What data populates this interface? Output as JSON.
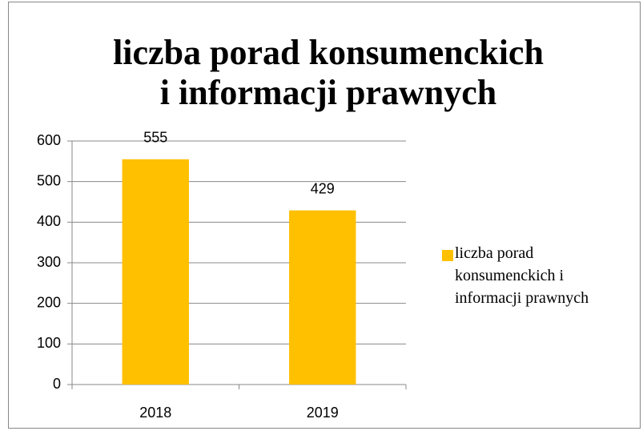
{
  "chart_data": {
    "type": "bar",
    "title": [
      "liczba porad konsumenckich",
      "i informacji prawnych"
    ],
    "categories": [
      "2018",
      "2019"
    ],
    "series": [
      {
        "name": "liczba porad konsumenckich i informacji prawnych",
        "color": "#ffc000",
        "values": [
          555,
          429
        ]
      }
    ],
    "ylim": [
      0,
      600
    ],
    "yticks": [
      0,
      100,
      200,
      300,
      400,
      500,
      600
    ],
    "grid": true,
    "legend": "right",
    "data_labels": true
  }
}
